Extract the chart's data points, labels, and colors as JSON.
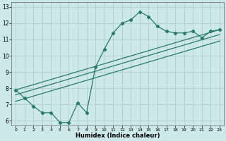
{
  "xlabel": "Humidex (Indice chaleur)",
  "bg_color": "#cce8e8",
  "line_color": "#2a7a6a",
  "grid_color": "#b0cccc",
  "xlim": [
    -0.5,
    23.5
  ],
  "ylim": [
    5.7,
    13.3
  ],
  "xticks": [
    0,
    1,
    2,
    3,
    4,
    5,
    6,
    7,
    8,
    9,
    10,
    11,
    12,
    13,
    14,
    15,
    16,
    17,
    18,
    19,
    20,
    21,
    22,
    23
  ],
  "yticks": [
    6,
    7,
    8,
    9,
    10,
    11,
    12,
    13
  ],
  "series1_x": [
    0,
    1,
    2,
    3,
    4,
    5,
    6,
    7,
    8,
    9,
    10,
    11,
    12,
    13,
    14,
    15,
    16,
    17,
    18,
    19,
    20,
    21,
    22,
    23
  ],
  "series1_y": [
    7.9,
    7.4,
    6.9,
    6.5,
    6.5,
    5.9,
    5.9,
    7.1,
    6.5,
    9.3,
    10.4,
    11.4,
    12.0,
    12.2,
    12.7,
    12.4,
    11.8,
    11.5,
    11.4,
    11.4,
    11.5,
    11.1,
    11.5,
    11.6
  ],
  "series2_x": [
    0,
    23
  ],
  "series2_y": [
    7.9,
    11.6
  ],
  "series3_x": [
    0,
    23
  ],
  "series3_y": [
    7.6,
    11.3
  ],
  "series4_x": [
    0,
    23
  ],
  "series4_y": [
    7.2,
    10.9
  ],
  "marker": "D",
  "marker_size": 2.2,
  "linewidth": 0.9
}
